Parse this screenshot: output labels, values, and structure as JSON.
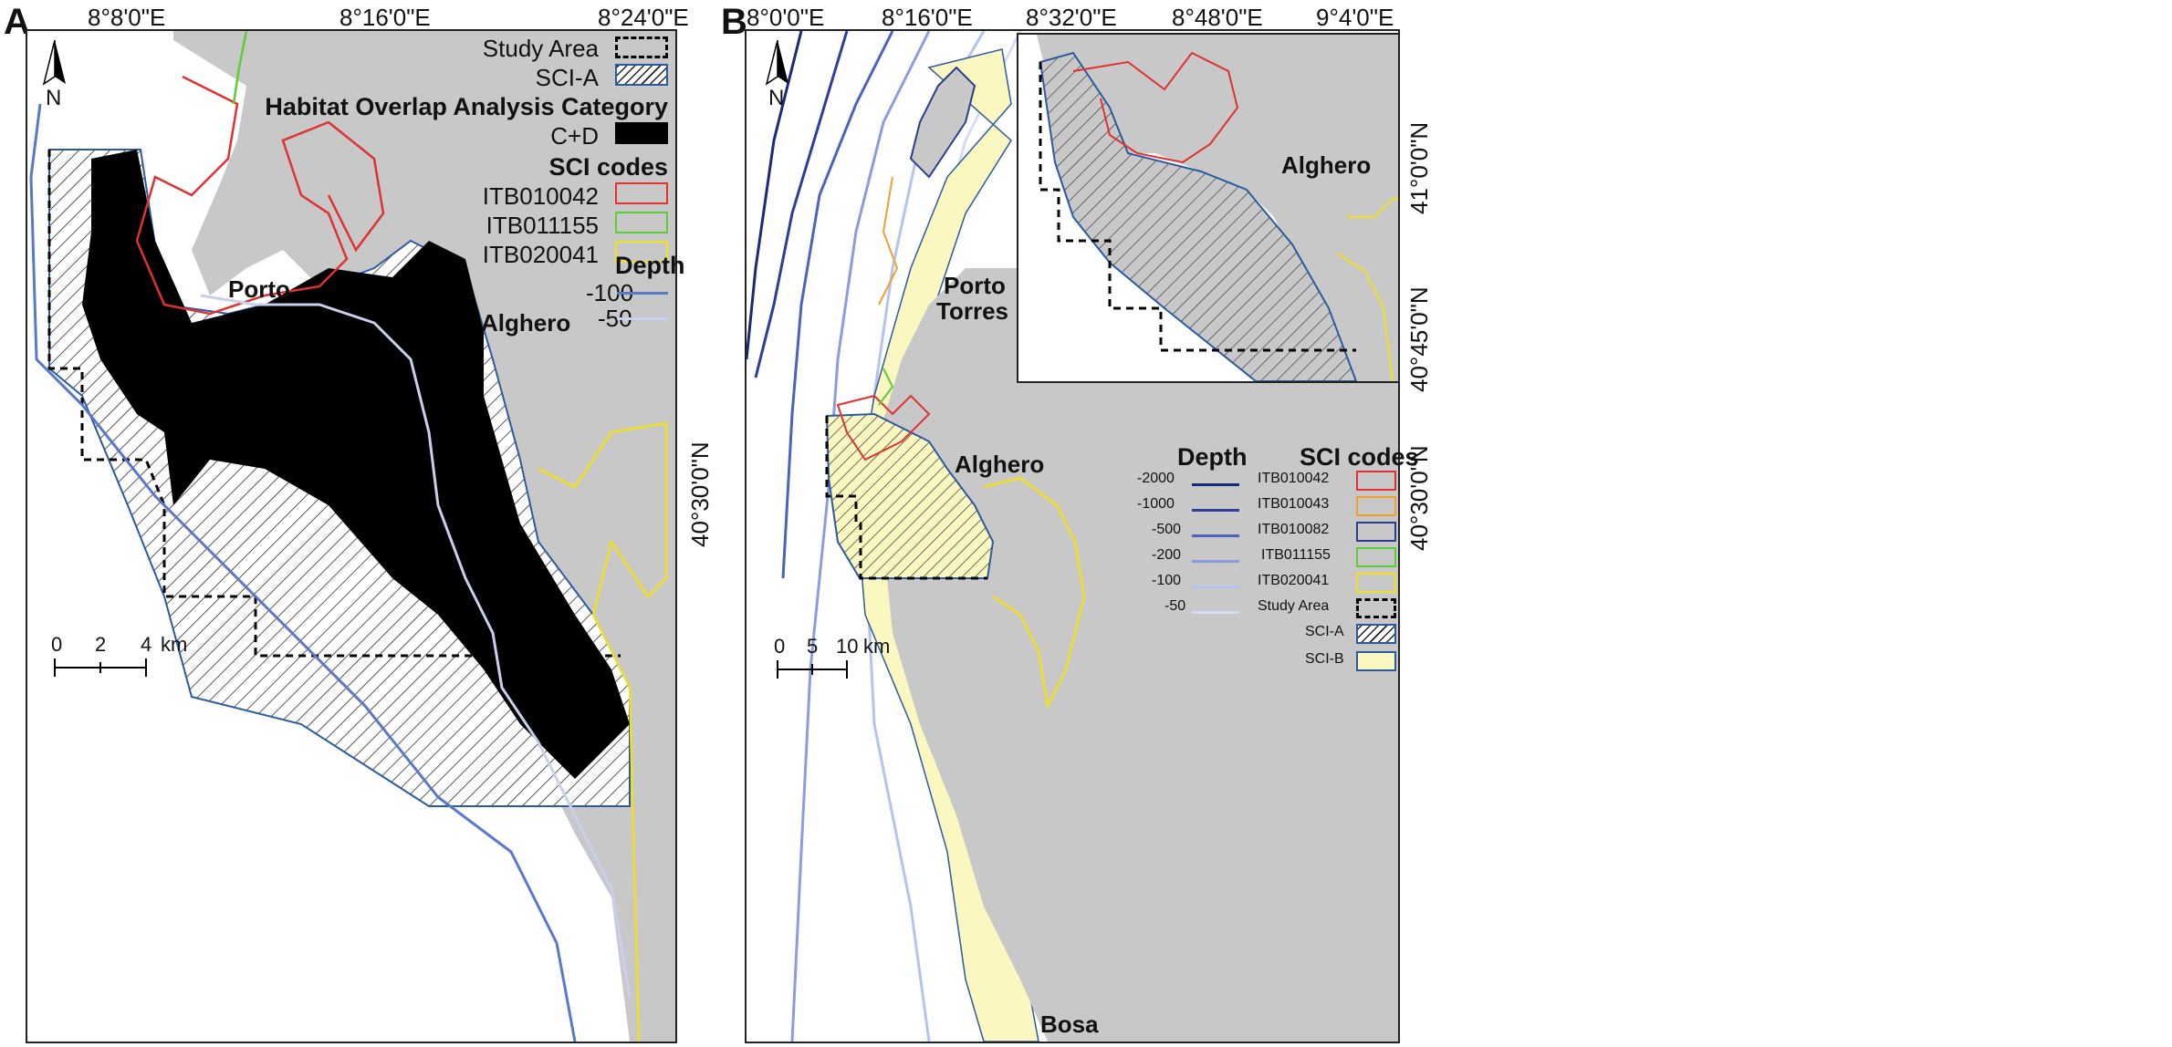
{
  "panelA": {
    "letter": "A",
    "lon_ticks": [
      "8°8'0\"E",
      "8°16'0\"E",
      "8°24'0\"E"
    ],
    "lat_ticks": [
      "40°30'0\"N"
    ],
    "places": {
      "alghero": "Alghero",
      "porto": "Porto"
    },
    "north": "N",
    "scale": {
      "zero": "0",
      "mid": "2",
      "end": "4",
      "unit": "km"
    },
    "legend": {
      "study_area": "Study Area",
      "sci_a": "SCI-A",
      "overlap_heading": "Habitat Overlap Analysis Category",
      "overlap_item": "C+D",
      "sci_heading": "SCI codes",
      "sci_items": [
        {
          "code": "ITB010042",
          "color": "#e03030"
        },
        {
          "code": "ITB011155",
          "color": "#5ccc3a"
        },
        {
          "code": "ITB020041",
          "color": "#f0e020"
        }
      ],
      "depth_heading": "Depth",
      "depth_items": [
        {
          "label": "-100",
          "color": "#5a78c8"
        },
        {
          "label": "-50",
          "color": "#c8d0ee"
        }
      ]
    }
  },
  "panelB": {
    "letter": "B",
    "lon_ticks": [
      "8°0'0\"E",
      "8°16'0\"E",
      "8°32'0\"E",
      "8°48'0\"E",
      "9°4'0\"E"
    ],
    "lat_ticks": [
      "41°0'0\"N",
      "40°45'0\"N",
      "40°30'0\"N"
    ],
    "places": {
      "porto": "Porto",
      "torres": "Torres",
      "alghero": "Alghero",
      "alghero_inset": "Alghero",
      "bosa": "Bosa"
    },
    "north": "N",
    "scale": {
      "zero": "0",
      "mid": "5",
      "end": "10",
      "unit": "km"
    },
    "legend": {
      "depth_heading": "Depth",
      "depth_items": [
        {
          "label": "-2000",
          "color": "#1a2a7a"
        },
        {
          "label": "-1000",
          "color": "#2a3e9a"
        },
        {
          "label": "-500",
          "color": "#4a62c0"
        },
        {
          "label": "-200",
          "color": "#8c9ce0"
        },
        {
          "label": "-100",
          "color": "#b4c4ec"
        },
        {
          "label": "-50",
          "color": "#d4dcf4"
        }
      ],
      "sci_heading": "SCI codes",
      "sci_items": [
        {
          "code": "ITB010042",
          "color": "#e03030"
        },
        {
          "code": "ITB010043",
          "color": "#f0a030"
        },
        {
          "code": "ITB010082",
          "color": "#2a3e8a"
        },
        {
          "code": "ITB011155",
          "color": "#5ccc3a"
        },
        {
          "code": "ITB020041",
          "color": "#f0e020"
        }
      ],
      "study_area": "Study Area",
      "sci_a": "SCI-A",
      "sci_b": "SCI-B"
    }
  },
  "colors": {
    "land": "#c8c8c8",
    "sea": "#ffffff",
    "overlap": "#000000",
    "sci_b_fill": "#fbf7c0",
    "sci_a_border": "#2a5aa0"
  }
}
